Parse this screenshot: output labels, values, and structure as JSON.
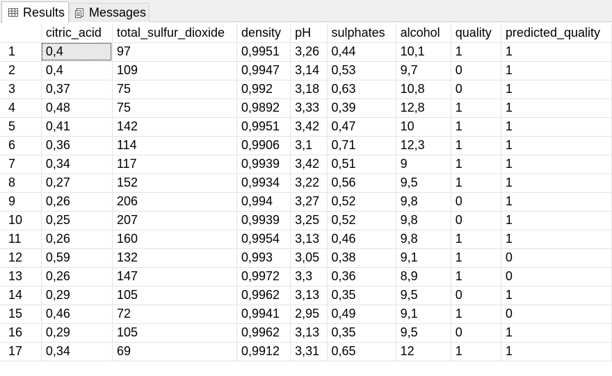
{
  "tabs": {
    "results_label": "Results",
    "messages_label": "Messages"
  },
  "icons": {
    "results": "grid-icon",
    "messages": "messages-icon"
  },
  "columns": [
    "",
    "citric_acid",
    "total_sulfur_dioxide",
    "density",
    "pH",
    "sulphates",
    "alcohol",
    "quality",
    "predicted_quality"
  ],
  "rows": [
    [
      "1",
      "0,4",
      "97",
      "0,9951",
      "3,26",
      "0,44",
      "10,1",
      "1",
      "1"
    ],
    [
      "2",
      "0,4",
      "109",
      "0,9947",
      "3,14",
      "0,53",
      "9,7",
      "0",
      "1"
    ],
    [
      "3",
      "0,37",
      "75",
      "0,992",
      "3,18",
      "0,63",
      "10,8",
      "0",
      "1"
    ],
    [
      "4",
      "0,48",
      "75",
      "0,9892",
      "3,33",
      "0,39",
      "12,8",
      "1",
      "1"
    ],
    [
      "5",
      "0,41",
      "142",
      "0,9951",
      "3,42",
      "0,47",
      "10",
      "1",
      "1"
    ],
    [
      "6",
      "0,36",
      "114",
      "0,9906",
      "3,1",
      "0,71",
      "12,3",
      "1",
      "1"
    ],
    [
      "7",
      "0,34",
      "117",
      "0,9939",
      "3,42",
      "0,51",
      "9",
      "1",
      "1"
    ],
    [
      "8",
      "0,27",
      "152",
      "0,9934",
      "3,22",
      "0,56",
      "9,5",
      "1",
      "1"
    ],
    [
      "9",
      "0,26",
      "206",
      "0,994",
      "3,27",
      "0,52",
      "9,8",
      "0",
      "1"
    ],
    [
      "10",
      "0,25",
      "207",
      "0,9939",
      "3,25",
      "0,52",
      "9,8",
      "0",
      "1"
    ],
    [
      "11",
      "0,26",
      "160",
      "0,9954",
      "3,13",
      "0,46",
      "9,8",
      "1",
      "1"
    ],
    [
      "12",
      "0,59",
      "132",
      "0,993",
      "3,05",
      "0,38",
      "9,1",
      "1",
      "0"
    ],
    [
      "13",
      "0,26",
      "147",
      "0,9972",
      "3,3",
      "0,36",
      "8,9",
      "1",
      "0"
    ],
    [
      "14",
      "0,29",
      "105",
      "0,9962",
      "3,13",
      "0,35",
      "9,5",
      "0",
      "1"
    ],
    [
      "15",
      "0,46",
      "72",
      "0,9941",
      "2,95",
      "0,49",
      "9,1",
      "1",
      "0"
    ],
    [
      "16",
      "0,29",
      "105",
      "0,9962",
      "3,13",
      "0,35",
      "9,5",
      "0",
      "1"
    ],
    [
      "17",
      "0,34",
      "69",
      "0,9912",
      "3,31",
      "0,65",
      "12",
      "1",
      "1"
    ]
  ],
  "selected_cell": {
    "row": 1,
    "column": "citric_acid"
  }
}
